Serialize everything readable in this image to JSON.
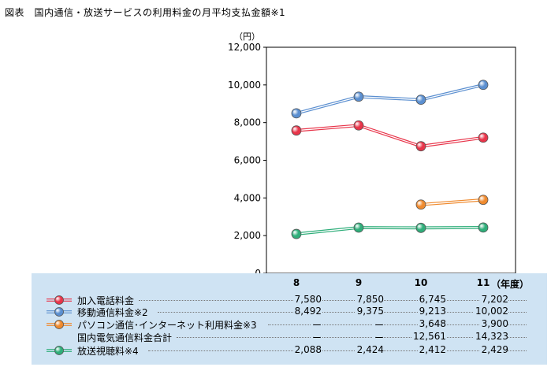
{
  "title": "図表　国内通信・放送サービスの利用料金の月平均支払金額※1",
  "y_unit": "（円）",
  "x_unit": "（年度）",
  "chart_data": {
    "type": "line",
    "categories": [
      "8",
      "9",
      "10",
      "11"
    ],
    "ylim": [
      0,
      12000
    ],
    "yticks": [
      "0",
      "2,000",
      "4,000",
      "6,000",
      "8,000",
      "10,000",
      "12,000"
    ],
    "grid": false,
    "series": [
      {
        "name": "加入電話料金",
        "color": "#e8354a",
        "values": [
          7580,
          7850,
          6745,
          7202
        ],
        "labels": [
          "7,580",
          "7,850",
          "6,745",
          "7,202"
        ]
      },
      {
        "name": "移動通信料金※2",
        "color": "#5b8fd0",
        "values": [
          8492,
          9375,
          9213,
          10002
        ],
        "labels": [
          "8,492",
          "9,375",
          "9,213",
          "10,002"
        ]
      },
      {
        "name": "パソコン通信･インターネット利用料金※3",
        "color": "#ef8a2e",
        "values": [
          null,
          null,
          3648,
          3900
        ],
        "labels": [
          "ー",
          "ー",
          "3,648",
          "3,900"
        ]
      },
      {
        "name": "国内電気通信料金合計",
        "color": null,
        "values": [
          null,
          null,
          12561,
          14323
        ],
        "labels": [
          "ー",
          "ー",
          "12,561",
          "14,323"
        ]
      },
      {
        "name": "放送視聴料※4",
        "color": "#2fae7a",
        "values": [
          2088,
          2424,
          2412,
          2429
        ],
        "labels": [
          "2,088",
          "2,424",
          "2,412",
          "2,429"
        ]
      }
    ]
  }
}
